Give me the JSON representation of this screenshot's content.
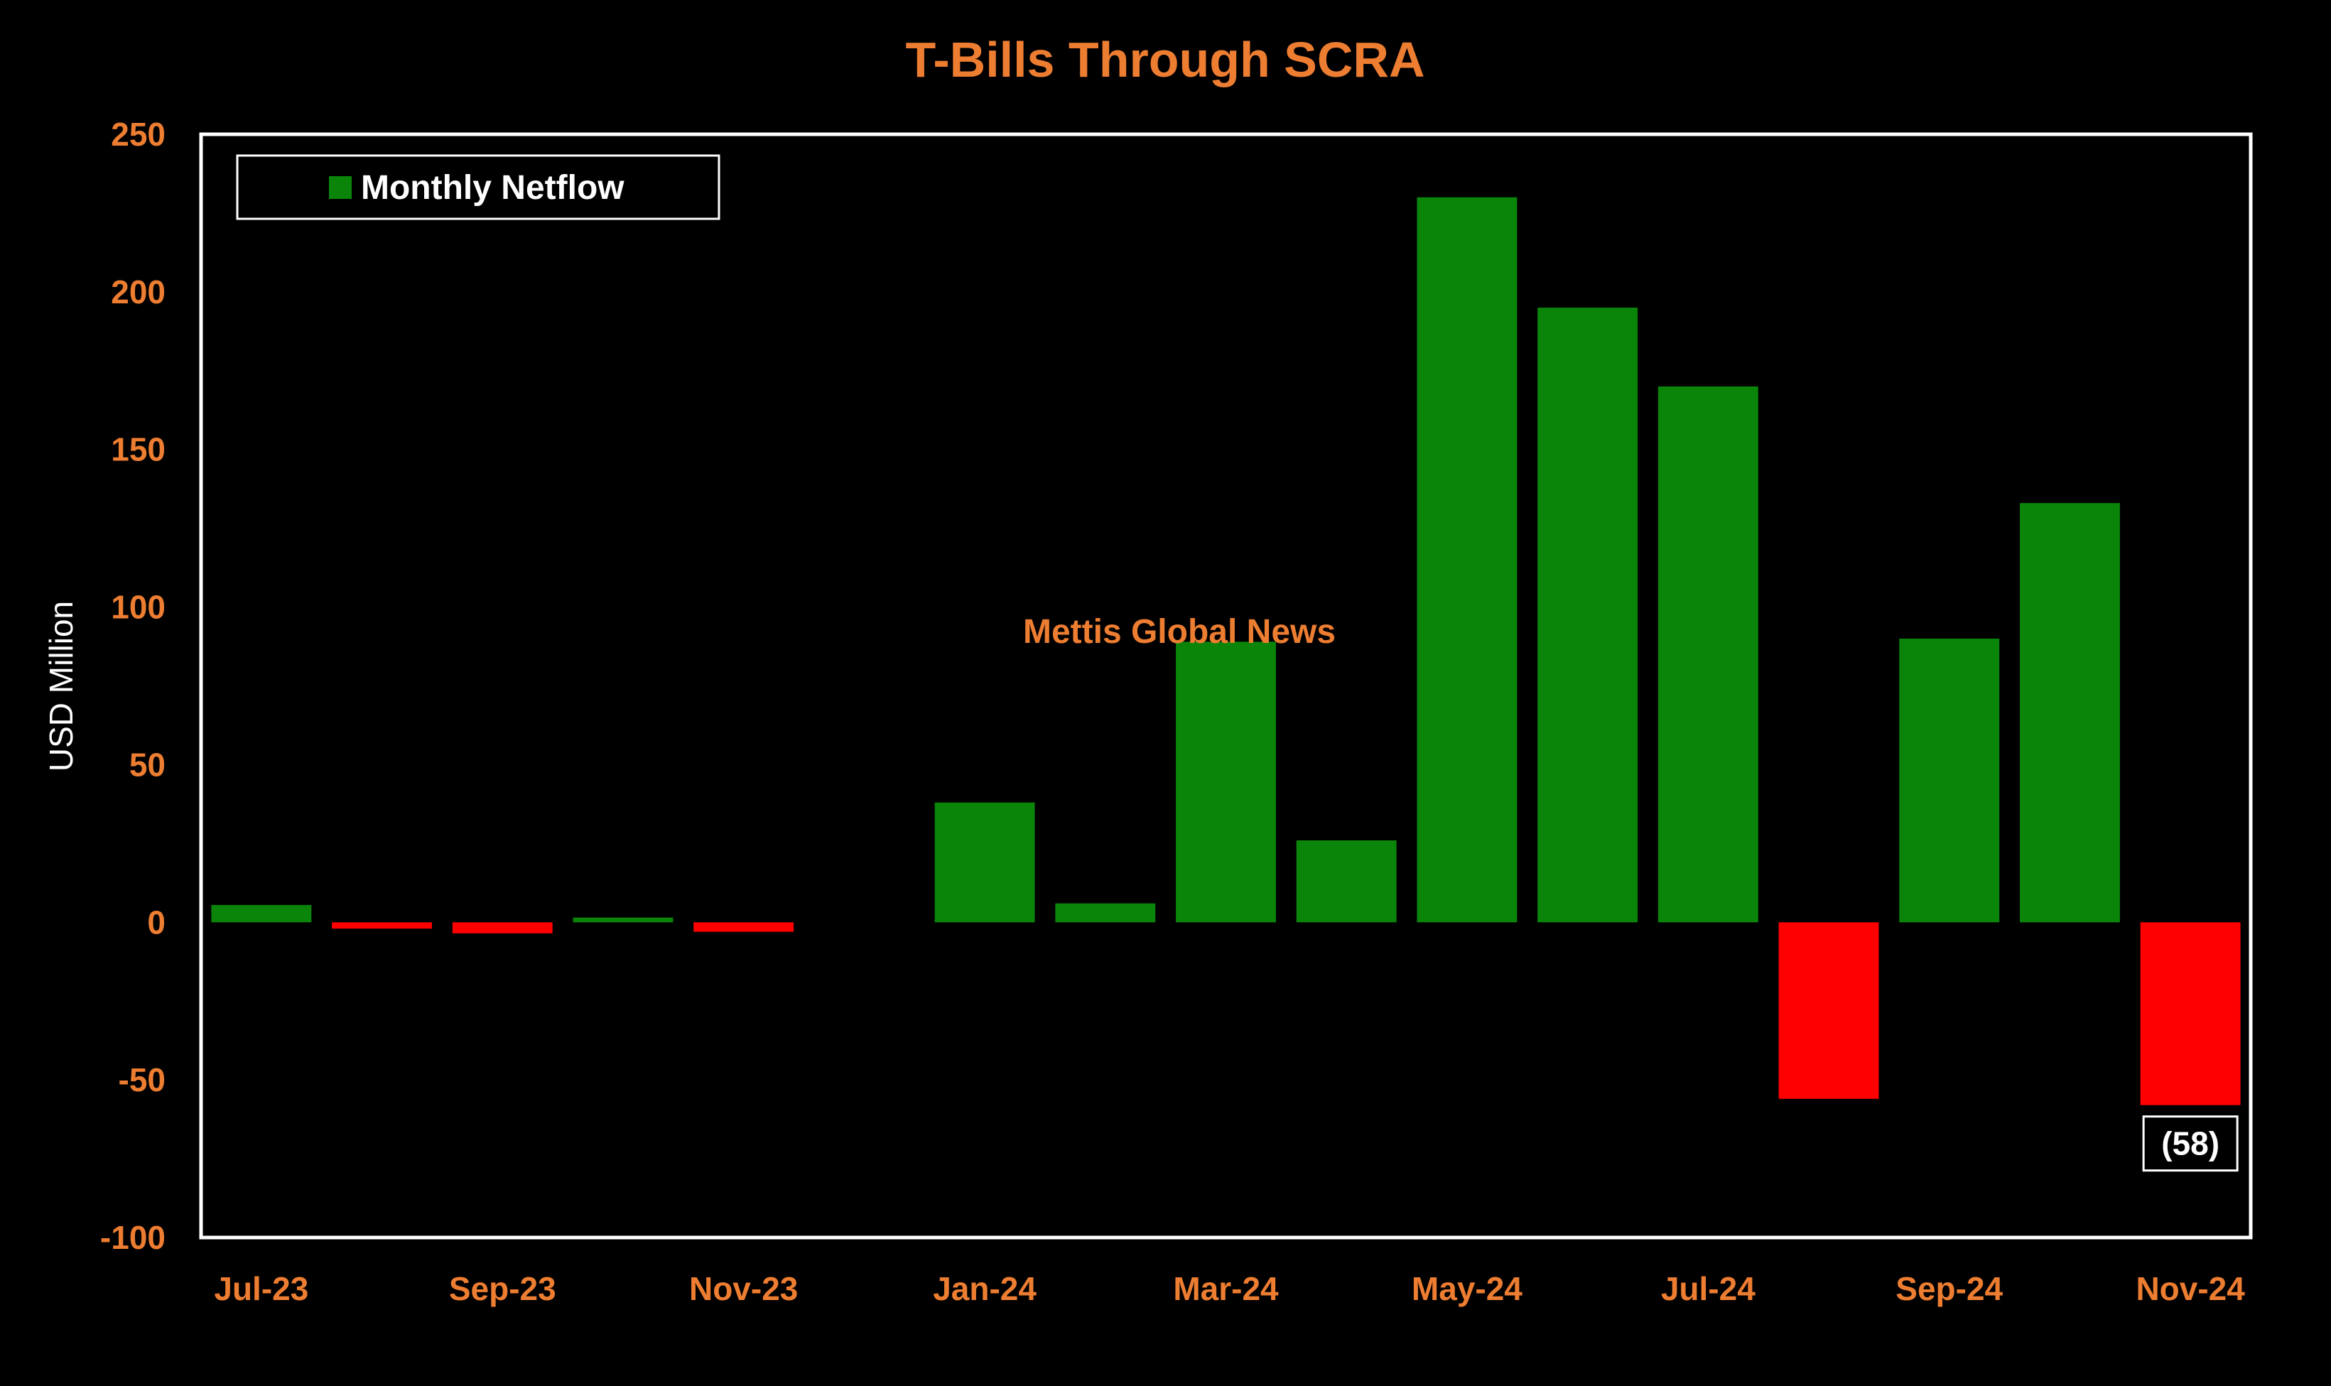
{
  "colors": {
    "background": "#000000",
    "text_accent": "#ED7D31",
    "positive": "#0A850A",
    "negative": "#FF0000",
    "frame": "#FFFFFF",
    "axis_label": "#FFFFFF"
  },
  "watermark": "Mettis Global News",
  "chart_data": {
    "type": "bar",
    "title": "T-Bills Through SCRA",
    "xlabel": "",
    "ylabel": "USD Million",
    "ylim": [
      -100,
      250
    ],
    "yticks": [
      250,
      200,
      150,
      100,
      50,
      0,
      -50,
      -100
    ],
    "grid": false,
    "legend_position": "top-left",
    "categories": [
      "Jul-23",
      "Aug-23",
      "Sep-23",
      "Oct-23",
      "Nov-23",
      "Dec-23",
      "Jan-24",
      "Feb-24",
      "Mar-24",
      "Apr-24",
      "May-24",
      "Jun-24",
      "Jul-24",
      "Aug-24",
      "Sep-24",
      "Oct-24",
      "Nov-24"
    ],
    "xtick_labels": [
      "Jul-23",
      "",
      "Sep-23",
      "",
      "Nov-23",
      "",
      "Jan-24",
      "",
      "Mar-24",
      "",
      "May-24",
      "",
      "Jul-24",
      "",
      "Sep-24",
      "",
      "Nov-24"
    ],
    "series": [
      {
        "name": "Monthly Netflow",
        "values": [
          5.5,
          -2,
          -3.5,
          1.5,
          -3,
          0,
          38,
          6,
          89,
          26,
          230,
          195,
          170,
          -56,
          90,
          133,
          -58
        ]
      }
    ],
    "data_labels": [
      {
        "category": "Nov-24",
        "text": "(58)"
      }
    ]
  }
}
